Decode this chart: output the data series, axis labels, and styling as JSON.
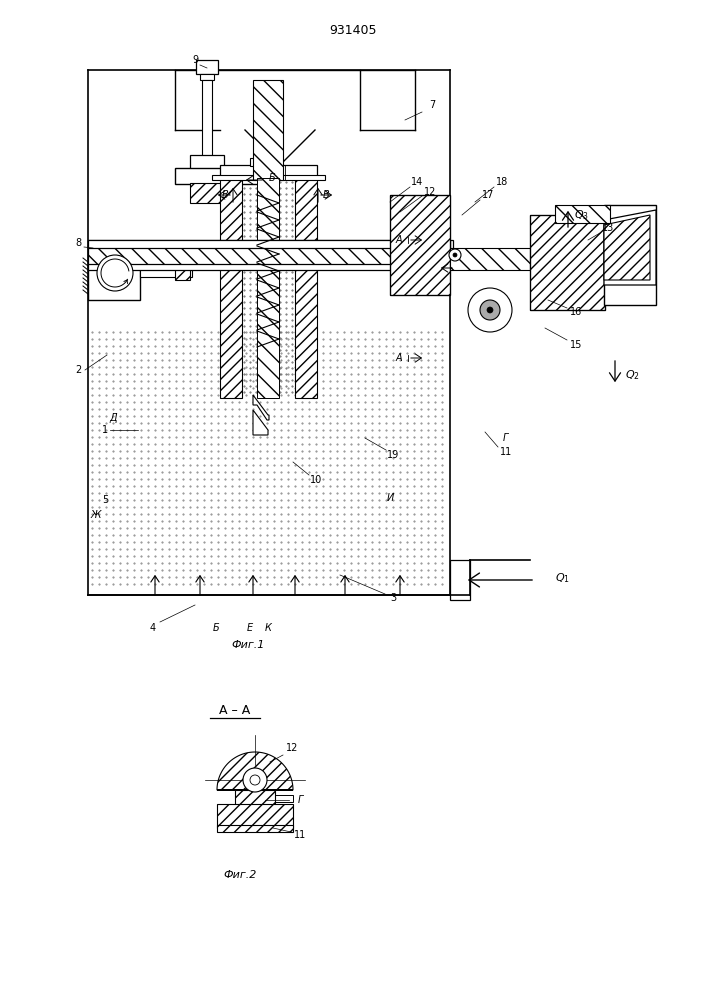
{
  "title": "931405",
  "fig1_caption": "Фиг.1",
  "fig2_caption": "Фиг.2",
  "fig2_section": "А – А",
  "bg_color": "#ffffff"
}
